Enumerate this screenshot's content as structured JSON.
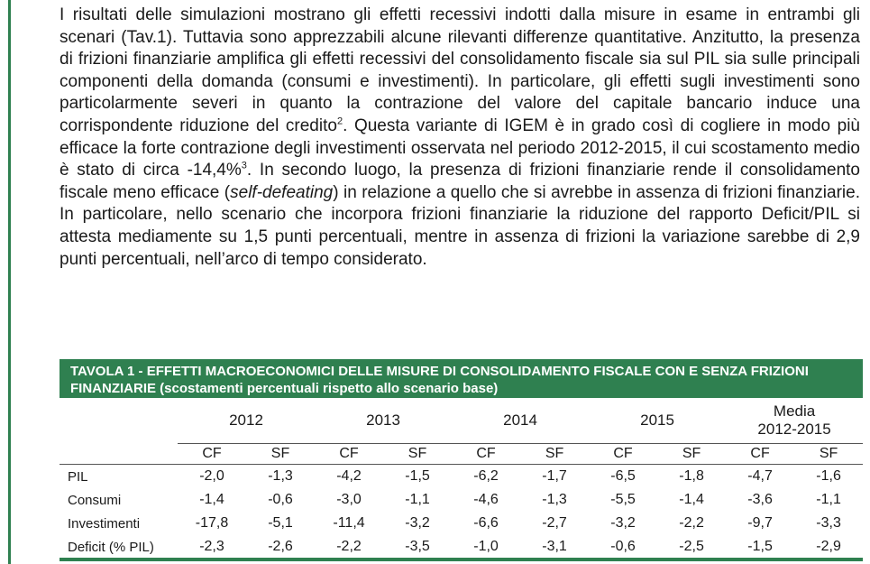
{
  "paragraph": {
    "intro": "I risultati delle simulazioni mostrano gli effetti recessivi indotti dalla misure in esame in entrambi gli scenari (Tav.1). Tuttavia sono apprezzabili alcune rilevanti differenze quantitative. Anzitutto, la presenza di frizioni finanziarie amplifica gli effetti recessivi del consolidamento fiscale sia sul PIL sia sulle principali componenti della domanda (consumi e investimenti). In particolare, gli effetti sugli investimenti sono particolarmente severi in quanto la contrazione del valore del capitale bancario induce una corrispondente riduzione del credito",
    "footnote_2": "2",
    "middle": ". Questa variante di IGEM è in grado così di cogliere in modo più efficace la forte contrazione degli investimenti osservata nel periodo 2012-2015, il cui scostamento medio è stato di circa -14,4%",
    "footnote_3": "3",
    "after_note": ". In secondo luogo, la presenza di frizioni finanziarie rende il consolidamento fiscale meno efficace (",
    "italic": "self-defeating",
    "end": ") in relazione a quello che si avrebbe in assenza di frizioni finanziarie. In particolare, nello scenario che incorpora frizioni finanziarie la riduzione del rapporto Deficit/PIL si attesta mediamente su 1,5 punti percentuali, mentre in assenza di frizioni la variazione sarebbe di 2,9 punti percentuali, nell’arco di tempo considerato."
  },
  "table": {
    "title": "TAVOLA 1 - EFFETTI MACROECONOMICI DELLE MISURE DI CONSOLIDAMENTO FISCALE CON E SENZA FRIZIONI FINANZIARIE (scostamenti percentuali rispetto allo scenario base)",
    "years": [
      "2012",
      "2013",
      "2014",
      "2015"
    ],
    "media_line1": "Media",
    "media_line2": "2012-2015",
    "sub_headers": [
      "CF",
      "SF",
      "CF",
      "SF",
      "CF",
      "SF",
      "CF",
      "SF",
      "CF",
      "SF"
    ],
    "rows": [
      {
        "label": "PIL",
        "values": [
          "-2,0",
          "-1,3",
          "-4,2",
          "-1,5",
          "-6,2",
          "-1,7",
          "-6,5",
          "-1,8",
          "-4,7",
          "-1,6"
        ]
      },
      {
        "label": "Consumi",
        "values": [
          "-1,4",
          "-0,6",
          "-3,0",
          "-1,1",
          "-4,6",
          "-1,3",
          "-5,5",
          "-1,4",
          "-3,6",
          "-1,1"
        ]
      },
      {
        "label": "Investimenti",
        "values": [
          "-17,8",
          "-5,1",
          "-11,4",
          "-3,2",
          "-6,6",
          "-2,7",
          "-3,2",
          "-2,2",
          "-9,7",
          "-3,3"
        ]
      },
      {
        "label": "Deficit (% PIL)",
        "values": [
          "-2,3",
          "-2,6",
          "-2,2",
          "-3,5",
          "-1,0",
          "-3,1",
          "-0,6",
          "-2,5",
          "-1,5",
          "-2,9"
        ]
      }
    ]
  }
}
